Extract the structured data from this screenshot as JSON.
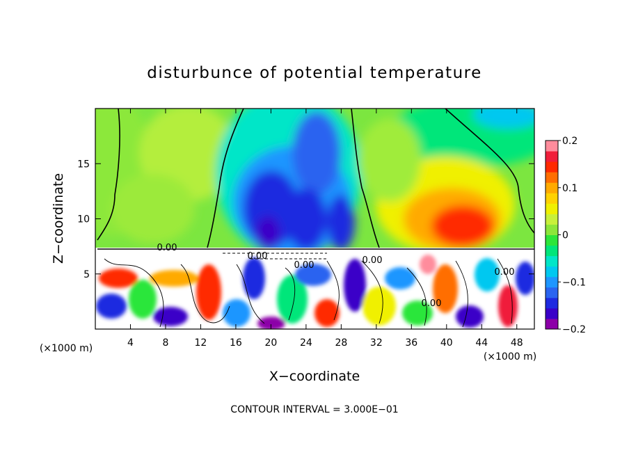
{
  "chart_data": {
    "type": "heatmap",
    "title": "disturbunce of potential temperature",
    "xlabel": "X−coordinate",
    "ylabel": "Z−coordinate",
    "x_unit_label": "(×1000 m)",
    "x_unit_label_right": "(×1000 m)",
    "footer": "CONTOUR INTERVAL = 3.000E−01",
    "xlim": [
      0,
      50
    ],
    "ylim": [
      0,
      20
    ],
    "x_ticks": [
      "4",
      "8",
      "12",
      "16",
      "20",
      "24",
      "28",
      "32",
      "36",
      "40",
      "44",
      "48"
    ],
    "y_ticks": [
      "5",
      "10",
      "15"
    ],
    "colorbar": {
      "range": [
        -0.2,
        0.2
      ],
      "tick_labels": [
        "0.2",
        "0.1",
        "0",
        "−0.1",
        "−0.2"
      ],
      "colors": [
        "#8c00a8",
        "#3a00c8",
        "#1e2ae0",
        "#2a64f0",
        "#1e96ff",
        "#00c8f0",
        "#00e6c8",
        "#00e67a",
        "#2ce63a",
        "#8ce63a",
        "#c8f03a",
        "#f0f000",
        "#ffd200",
        "#ffaa00",
        "#ff6e00",
        "#ff2a00",
        "#f01e3a",
        "#ff8c9c"
      ]
    },
    "contour_labels": [
      "0.00",
      "0.00",
      "0.00",
      "0.00",
      "0.00",
      "0.00"
    ]
  }
}
